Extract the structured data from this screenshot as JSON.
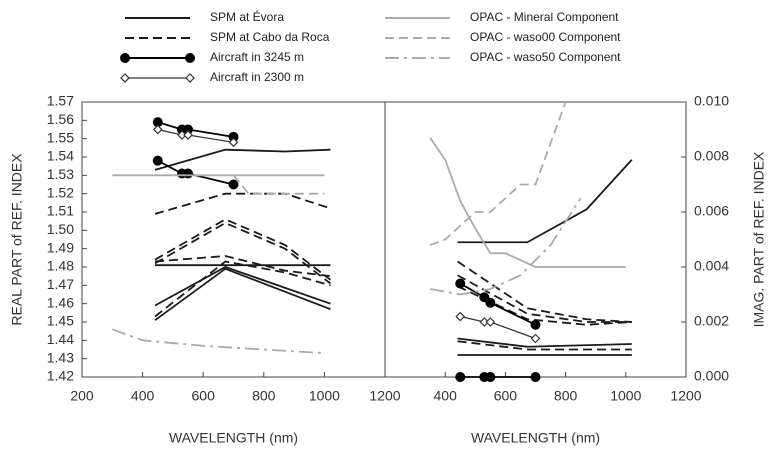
{
  "chart_data": {
    "type": "line",
    "legend": [
      {
        "name": "SPM at Évora",
        "color": "#1a1a1a",
        "dash": "none",
        "marker": "none"
      },
      {
        "name": "SPM at Cabo da Roca",
        "color": "#1a1a1a",
        "dash": "9,5",
        "marker": "none"
      },
      {
        "name": "Aircraft in 3245 m",
        "color": "#000000",
        "dash": "none",
        "marker": "circle"
      },
      {
        "name": "Aircraft in 2300 m",
        "color": "#333333",
        "dash": "none",
        "marker": "diamond"
      },
      {
        "name": "OPAC - Mineral Component",
        "color": "#aaaaaa",
        "dash": "none",
        "marker": "none"
      },
      {
        "name": "OPAC - waso00 Component",
        "color": "#aaaaaa",
        "dash": "9,5",
        "marker": "none"
      },
      {
        "name": "OPAC - waso50 Component",
        "color": "#aaaaaa",
        "dash": "14,5,3,5",
        "marker": "none"
      }
    ],
    "panels": [
      {
        "ylabel": "REAL PART of REF. INDEX",
        "xlabel": "WAVELENGTH (nm)",
        "side": "left",
        "xlim": [
          200,
          1200
        ],
        "xticks": [
          200,
          400,
          600,
          800,
          1000,
          1200
        ],
        "ylim": [
          1.42,
          1.57
        ],
        "yticks": [
          1.42,
          1.43,
          1.44,
          1.45,
          1.46,
          1.47,
          1.48,
          1.49,
          {
            "value": 1.5,
            "label": "1.50"
          },
          1.51,
          1.52,
          1.53,
          1.54,
          1.55,
          1.56,
          1.57
        ],
        "lines": [
          {
            "group": "SPM at Évora",
            "x": [
              441,
              673,
              870,
              1020
            ],
            "values": [
              1.533,
              1.544,
              1.543,
              1.544
            ]
          },
          {
            "group": "SPM at Évora",
            "x": [
              441,
              673,
              1020
            ],
            "values": [
              1.481,
              1.481,
              1.481
            ]
          },
          {
            "group": "SPM at Évora",
            "x": [
              441,
              673,
              1020
            ],
            "values": [
              1.459,
              1.48,
              1.46
            ]
          },
          {
            "group": "SPM at Évora",
            "x": [
              441,
              673,
              1020
            ],
            "values": [
              1.451,
              1.479,
              1.457
            ]
          },
          {
            "group": "SPM at Cabo da Roca",
            "x": [
              441,
              673,
              870,
              1020
            ],
            "values": [
              1.509,
              1.52,
              1.52,
              1.512
            ]
          },
          {
            "group": "SPM at Cabo da Roca",
            "x": [
              441,
              673,
              870,
              1020
            ],
            "values": [
              1.484,
              1.506,
              1.492,
              1.473
            ]
          },
          {
            "group": "SPM at Cabo da Roca",
            "x": [
              441,
              673,
              870,
              1020
            ],
            "values": [
              1.482,
              1.504,
              1.49,
              1.471
            ]
          },
          {
            "group": "SPM at Cabo da Roca",
            "x": [
              441,
              673,
              870,
              1020
            ],
            "values": [
              1.483,
              1.486,
              1.478,
              1.475
            ]
          },
          {
            "group": "SPM at Cabo da Roca",
            "x": [
              441,
              673,
              870,
              1020
            ],
            "values": [
              1.453,
              1.483,
              1.477,
              1.47
            ]
          },
          {
            "group": "Aircraft in 3245 m",
            "x": [
              450,
              530,
              550,
              700
            ],
            "values": [
              1.559,
              1.555,
              1.555,
              1.551
            ]
          },
          {
            "group": "Aircraft in 3245 m",
            "x": [
              450,
              530,
              550,
              700
            ],
            "values": [
              1.538,
              1.531,
              1.531,
              1.525
            ]
          },
          {
            "group": "Aircraft in 2300 m",
            "x": [
              450,
              530,
              550,
              700
            ],
            "values": [
              1.555,
              1.552,
              1.552,
              1.548
            ]
          },
          {
            "group": "OPAC - Mineral Component",
            "x": [
              300,
              1000
            ],
            "values": [
              1.53,
              1.53
            ]
          },
          {
            "group": "OPAC - waso00 Component",
            "x": [
              700,
              750,
              900,
              1000
            ],
            "values": [
              1.53,
              1.52,
              1.52,
              1.52
            ]
          },
          {
            "group": "OPAC - waso50 Component",
            "x": [
              300,
              400,
              600,
              700,
              800,
              1000
            ],
            "values": [
              1.446,
              1.44,
              1.437,
              1.436,
              1.435,
              1.433
            ]
          }
        ]
      },
      {
        "ylabel": "IMAG. PART of REF. INDEX",
        "xlabel": "WAVELENGTH (nm)",
        "side": "right",
        "xlim": [
          200,
          1200
        ],
        "xticks": [
          400,
          600,
          800,
          1000,
          1200
        ],
        "ylim": [
          0,
          0.01
        ],
        "yticks": [
          {
            "value": 0,
            "label": "0.000"
          },
          0.002,
          0.004,
          0.006,
          0.008,
          {
            "value": 0.01,
            "label": "0.010"
          }
        ],
        "lines": [
          {
            "group": "SPM at Évora",
            "x": [
              441,
              673,
              870,
              1020
            ],
            "values": [
              0.0049,
              0.0049,
              0.0061,
              0.0079
            ]
          },
          {
            "group": "SPM at Évora",
            "x": [
              441,
              673,
              1020
            ],
            "values": [
              0.0014,
              0.0011,
              0.0012
            ]
          },
          {
            "group": "SPM at Évora",
            "x": [
              441,
              673,
              1020
            ],
            "values": [
              0.0008,
              0.0008,
              0.0008
            ]
          },
          {
            "group": "SPM at Cabo da Roca",
            "x": [
              441,
              673,
              870,
              1020
            ],
            "values": [
              0.0042,
              0.0025,
              0.0021,
              0.002
            ]
          },
          {
            "group": "SPM at Cabo da Roca",
            "x": [
              441,
              673,
              870,
              1020
            ],
            "values": [
              0.0037,
              0.0023,
              0.002,
              0.002
            ]
          },
          {
            "group": "SPM at Cabo da Roca",
            "x": [
              441,
              673,
              870,
              1020
            ],
            "values": [
              0.0033,
              0.0021,
              0.0019,
              0.002
            ]
          },
          {
            "group": "SPM at Cabo da Roca",
            "x": [
              441,
              673,
              1020
            ],
            "values": [
              0.0013,
              0.001,
              0.001
            ]
          },
          {
            "group": "Aircraft in 3245 m",
            "x": [
              450,
              530,
              550,
              700
            ],
            "values": [
              0.0034,
              0.0029,
              0.0027,
              0.0019
            ]
          },
          {
            "group": "Aircraft in 3245 m",
            "x": [
              450,
              530,
              550,
              700
            ],
            "values": [
              0,
              0,
              0,
              0
            ]
          },
          {
            "group": "Aircraft in 2300 m",
            "x": [
              450,
              530,
              550,
              700
            ],
            "values": [
              0.0022,
              0.002,
              0.002,
              0.0014
            ]
          },
          {
            "group": "OPAC - Mineral Component",
            "x": [
              350,
              400,
              450,
              500,
              550,
              600,
              700,
              1000
            ],
            "values": [
              0.0087,
              0.0079,
              0.0064,
              0.0054,
              0.0045,
              0.0045,
              0.004,
              0.004
            ]
          },
          {
            "group": "OPAC - waso00 Component",
            "x": [
              350,
              400,
              500,
              550,
              650,
              700,
              800
            ],
            "values": [
              0.0048,
              0.005,
              0.006,
              0.006,
              0.007,
              0.007,
              0.01
            ]
          },
          {
            "group": "OPAC - waso50 Component",
            "x": [
              350,
              450,
              550,
              650,
              750,
              850
            ],
            "values": [
              0.0032,
              0.003,
              0.0032,
              0.0037,
              0.0048,
              0.0065
            ]
          }
        ]
      }
    ]
  }
}
